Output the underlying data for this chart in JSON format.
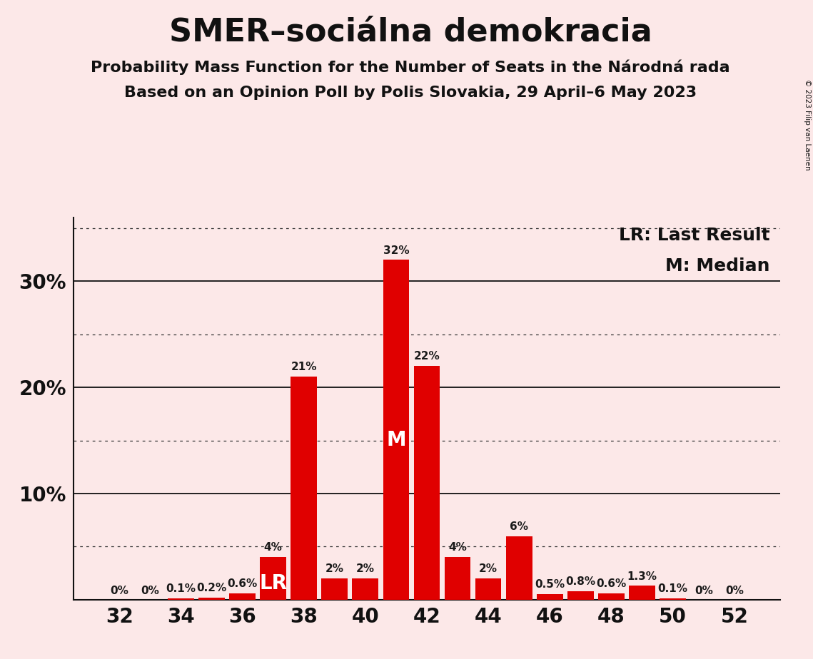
{
  "title": "SMER–sociálna demokracia",
  "subtitle1": "Probability Mass Function for the Number of Seats in the Národná rada",
  "subtitle2": "Based on an Opinion Poll by Polis Slovakia, 29 April–6 May 2023",
  "copyright": "© 2023 Filip van Laenen",
  "seats": [
    32,
    33,
    34,
    35,
    36,
    37,
    38,
    39,
    40,
    41,
    42,
    43,
    44,
    45,
    46,
    47,
    48,
    49,
    50,
    51,
    52
  ],
  "values": [
    0.0,
    0.0,
    0.1,
    0.2,
    0.6,
    4.0,
    21.0,
    2.0,
    2.0,
    32.0,
    22.0,
    4.0,
    2.0,
    6.0,
    0.5,
    0.8,
    0.6,
    1.3,
    0.1,
    0.0,
    0.0
  ],
  "labels": [
    "0%",
    "0%",
    "0.1%",
    "0.2%",
    "0.6%",
    "4%",
    "21%",
    "2%",
    "2%",
    "32%",
    "22%",
    "4%",
    "2%",
    "6%",
    "0.5%",
    "0.8%",
    "0.6%",
    "1.3%",
    "0.1%",
    "0%",
    "0%"
  ],
  "bar_color": "#e00000",
  "background_color": "#fce8e8",
  "lr_seat": 37,
  "median_seat": 41,
  "ylim": [
    0,
    36
  ],
  "xtick_labels": [
    "32",
    "34",
    "36",
    "38",
    "40",
    "42",
    "44",
    "46",
    "48",
    "50",
    "52"
  ],
  "xtick_positions": [
    32,
    34,
    36,
    38,
    40,
    42,
    44,
    46,
    48,
    50,
    52
  ],
  "title_fontsize": 32,
  "subtitle_fontsize": 16,
  "axis_label_fontsize": 20,
  "bar_label_fontsize": 11,
  "legend_fontsize": 18,
  "lr_label": "LR",
  "median_label": "M",
  "lr_legend": "LR: Last Result",
  "median_legend": "M: Median",
  "solid_grid": [
    10,
    20,
    30
  ],
  "dotted_grid": [
    5,
    15,
    25,
    35
  ],
  "ytick_positions": [
    10,
    20,
    30
  ],
  "ytick_labels": [
    "10%",
    "20%",
    "30%"
  ]
}
